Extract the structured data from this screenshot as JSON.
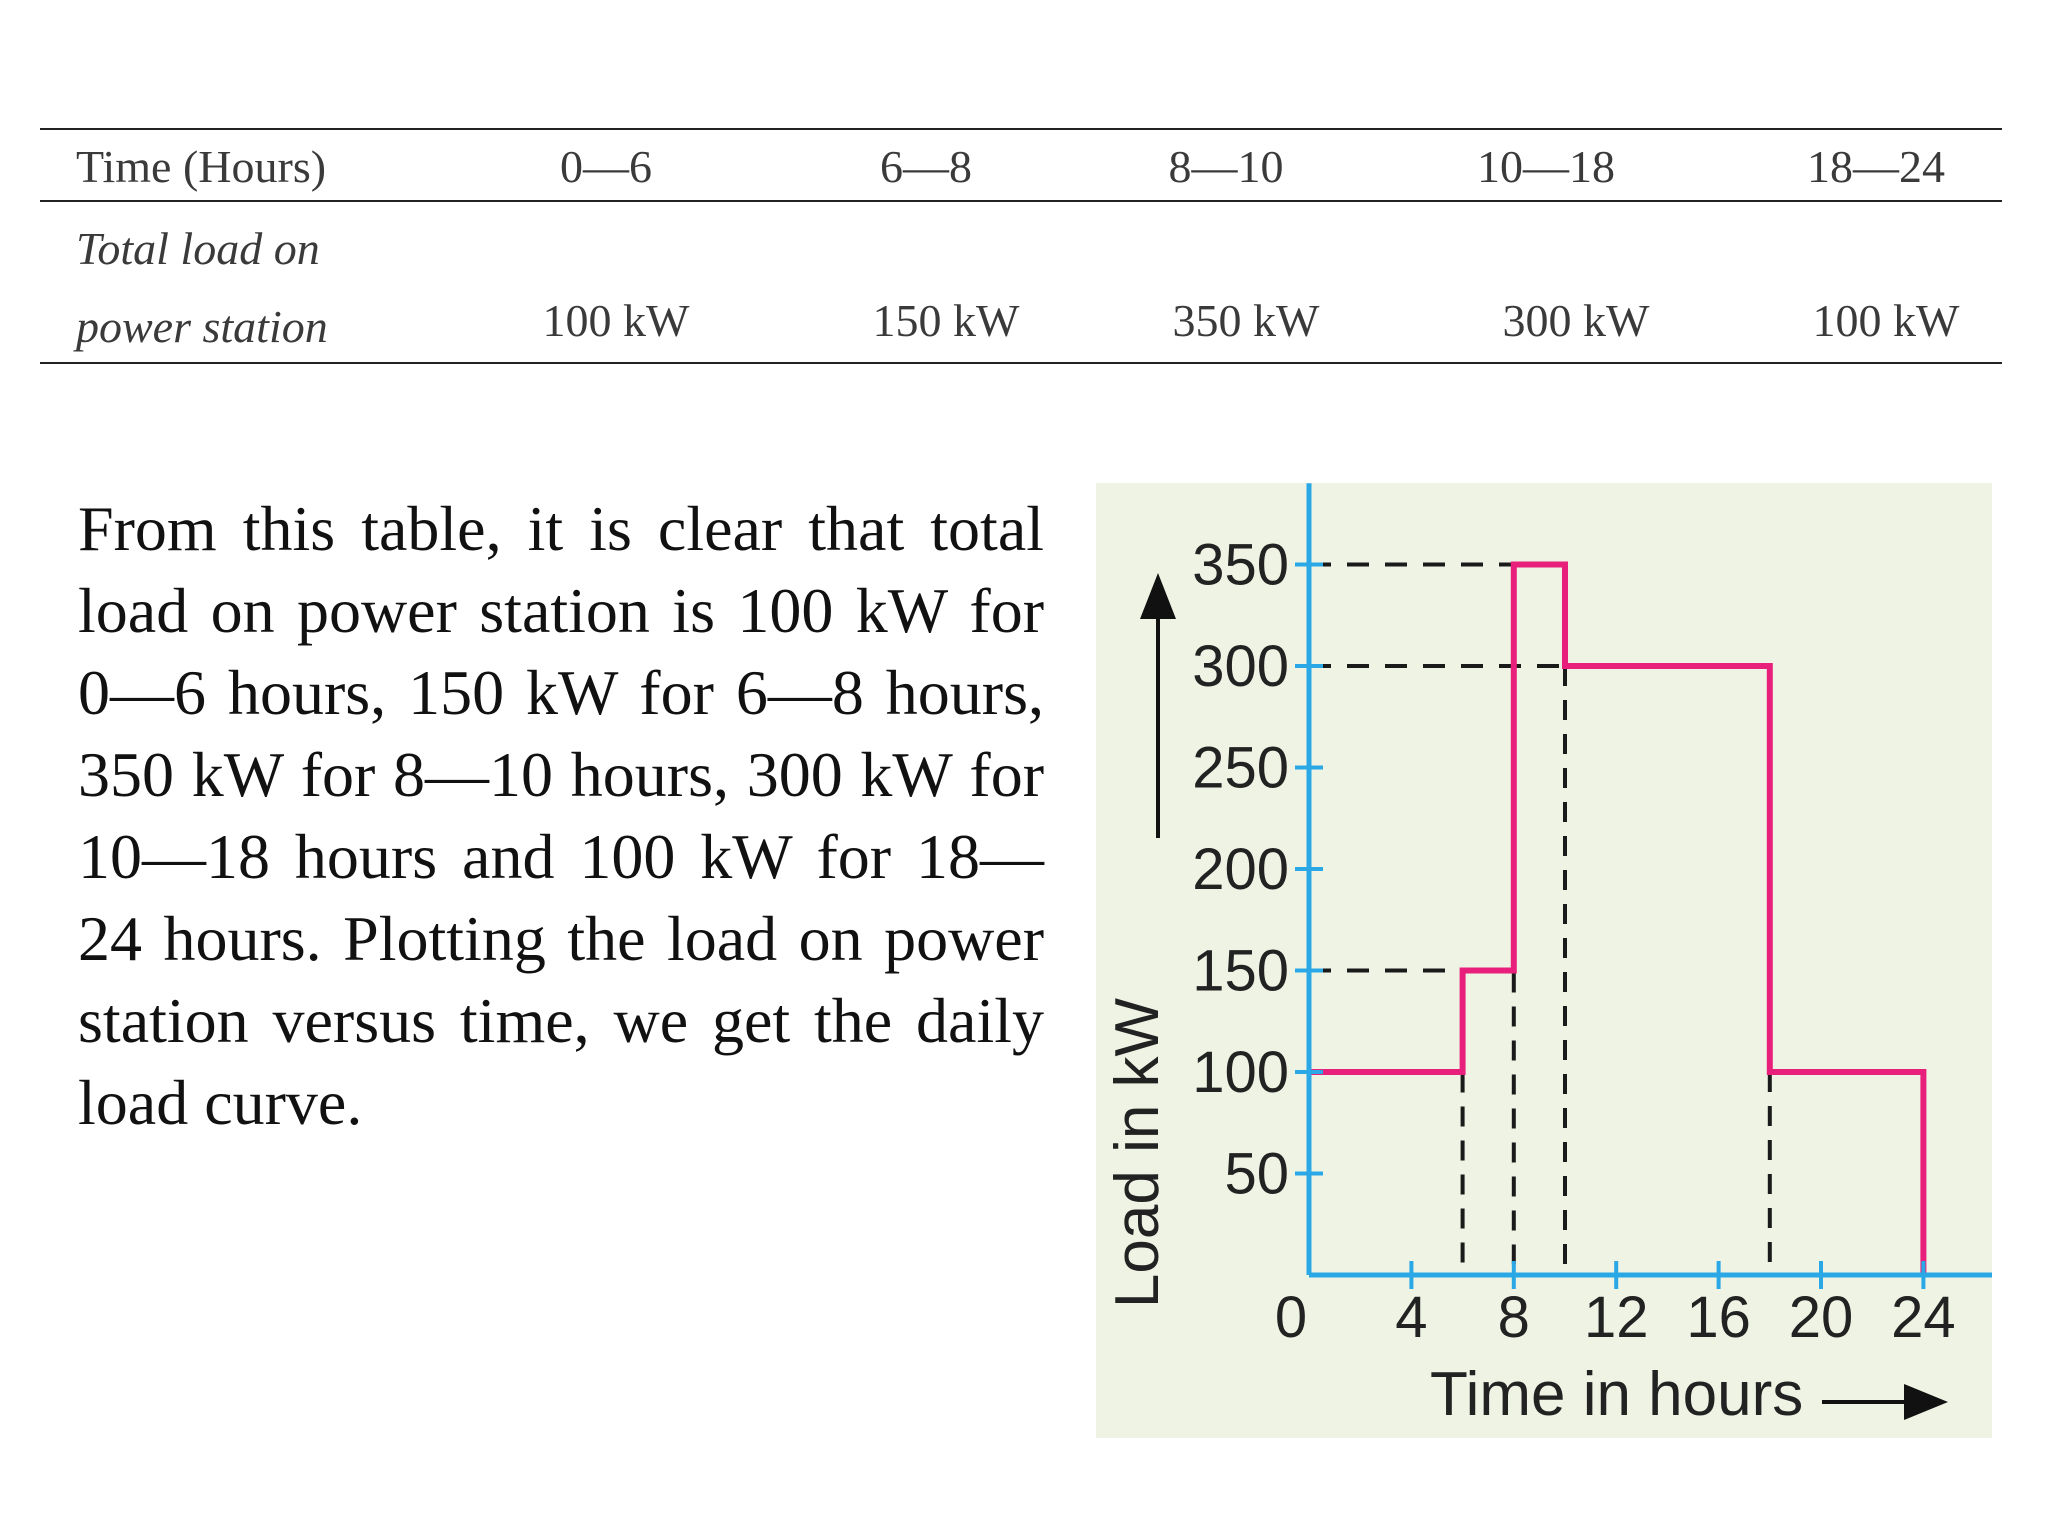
{
  "table": {
    "header_label": "Time (Hours)",
    "header_cells": [
      "0—6",
      "6—8",
      "8—10",
      "10—18",
      "18—24"
    ],
    "row_label_line1": "Total load on",
    "row_label_line2": "power station",
    "row_cells": [
      "100 kW",
      "150 kW",
      "350 kW",
      "300 kW",
      "100 kW"
    ]
  },
  "paragraph": "From this table, it is clear that total load on power station is 100 kW for 0—6 hours, 150 kW for 6—8 hours, 350 kW for 8—10 hours, 300 kW for 10—18 hours and 100 kW for 18—24 hours. Plotting the load on power station versus time, we get the daily load curve.",
  "colors": {
    "axis": "#2aa8e6",
    "curve": "#e8207c",
    "chart_background": "#eef3e4",
    "guide": "#1a1a1a"
  },
  "chart_data": {
    "type": "line",
    "step": true,
    "xlabel": "Time in hours",
    "ylabel": "Load in kW",
    "xlim": [
      0,
      27
    ],
    "ylim": [
      0,
      390
    ],
    "x_ticks": [
      0,
      4,
      8,
      12,
      16,
      20,
      24
    ],
    "y_ticks": [
      50,
      100,
      150,
      200,
      250,
      300,
      350
    ],
    "series": [
      {
        "segments": [
          {
            "x_start": 0,
            "x_end": 6,
            "y": 100
          },
          {
            "x_start": 6,
            "x_end": 8,
            "y": 150
          },
          {
            "x_start": 8,
            "x_end": 10,
            "y": 350
          },
          {
            "x_start": 10,
            "x_end": 18,
            "y": 300
          },
          {
            "x_start": 18,
            "x_end": 24,
            "y": 100
          }
        ]
      }
    ],
    "guides": {
      "horizontal": [
        {
          "y": 150,
          "x_end": 6
        },
        {
          "y": 300,
          "x_end": 10
        },
        {
          "y": 350,
          "x_end": 8
        }
      ],
      "vertical": [
        {
          "x": 6,
          "y_top": 150
        },
        {
          "x": 8,
          "y_top": 350
        },
        {
          "x": 10,
          "y_top": 300
        },
        {
          "x": 18,
          "y_top": 100
        }
      ]
    },
    "grid": false,
    "legend": "none"
  }
}
